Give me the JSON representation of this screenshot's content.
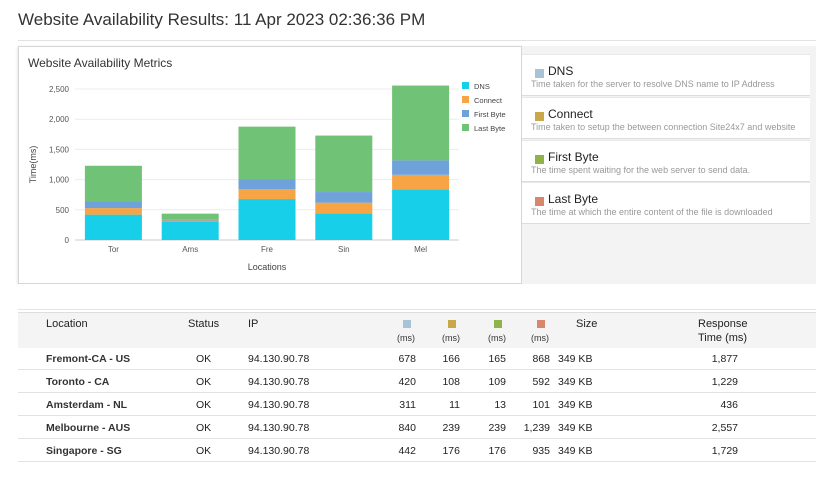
{
  "page_title": "Website Availability Results: 11 Apr 2023 02:36:36 PM",
  "colors": {
    "dns": "#17cfe8",
    "connect": "#f7a444",
    "first_byte": "#6fa2da",
    "last_byte": "#70c276"
  },
  "chart_data": {
    "type": "bar",
    "stacked": true,
    "title": "Website Availability Metrics",
    "xlabel": "Locations",
    "ylabel": "Time(ms)",
    "categories": [
      "Tor",
      "Ams",
      "Fre",
      "Sin",
      "Mel"
    ],
    "ylim": [
      0,
      2500
    ],
    "yticks": [
      "0",
      "500",
      "1,000",
      "1,500",
      "2,000",
      "2,500"
    ],
    "ytick_values": [
      0,
      500,
      1000,
      1500,
      2000,
      2500
    ],
    "legend_position": "top-right",
    "series": [
      {
        "name": "DNS",
        "color": "#17cfe8",
        "values": [
          420,
          311,
          678,
          442,
          840
        ]
      },
      {
        "name": "Connect",
        "color": "#f7a444",
        "values": [
          108,
          11,
          166,
          176,
          239
        ]
      },
      {
        "name": "First Byte",
        "color": "#6fa2da",
        "values": [
          109,
          13,
          165,
          176,
          239
        ]
      },
      {
        "name": "Last Byte",
        "color": "#70c276",
        "values": [
          592,
          101,
          868,
          935,
          1239
        ]
      }
    ]
  },
  "legend": [
    {
      "name": "DNS",
      "description": "Time taken for the server to resolve DNS name to IP Address",
      "color": "#a9c3d6"
    },
    {
      "name": "Connect",
      "description": "Time taken to setup the between connection Site24x7 and website",
      "color": "#c9a84a"
    },
    {
      "name": "First Byte",
      "description": "The time spent waiting for the web server to send data.",
      "color": "#8fb34a"
    },
    {
      "name": "Last Byte",
      "description": "The time at which the entire content of the file is downloaded",
      "color": "#d9876a"
    }
  ],
  "table": {
    "headers": {
      "location": "Location",
      "status": "Status",
      "ip": "IP",
      "ms": "(ms)",
      "size": "Size",
      "response_line1": "Response",
      "response_line2": "Time (ms)"
    },
    "rows": [
      {
        "location": "Fremont-CA - US",
        "status": "OK",
        "ip": "94.130.90.78",
        "dns": "678",
        "connect": "166",
        "first_byte": "165",
        "last_byte": "868",
        "size": "349 KB",
        "response": "1,877"
      },
      {
        "location": "Toronto - CA",
        "status": "OK",
        "ip": "94.130.90.78",
        "dns": "420",
        "connect": "108",
        "first_byte": "109",
        "last_byte": "592",
        "size": "349 KB",
        "response": "1,229"
      },
      {
        "location": "Amsterdam - NL",
        "status": "OK",
        "ip": "94.130.90.78",
        "dns": "311",
        "connect": "11",
        "first_byte": "13",
        "last_byte": "101",
        "size": "349 KB",
        "response": "436"
      },
      {
        "location": "Melbourne - AUS",
        "status": "OK",
        "ip": "94.130.90.78",
        "dns": "840",
        "connect": "239",
        "first_byte": "239",
        "last_byte": "1,239",
        "size": "349 KB",
        "response": "2,557"
      },
      {
        "location": "Singapore - SG",
        "status": "OK",
        "ip": "94.130.90.78",
        "dns": "442",
        "connect": "176",
        "first_byte": "176",
        "last_byte": "935",
        "size": "349 KB",
        "response": "1,729"
      }
    ]
  }
}
